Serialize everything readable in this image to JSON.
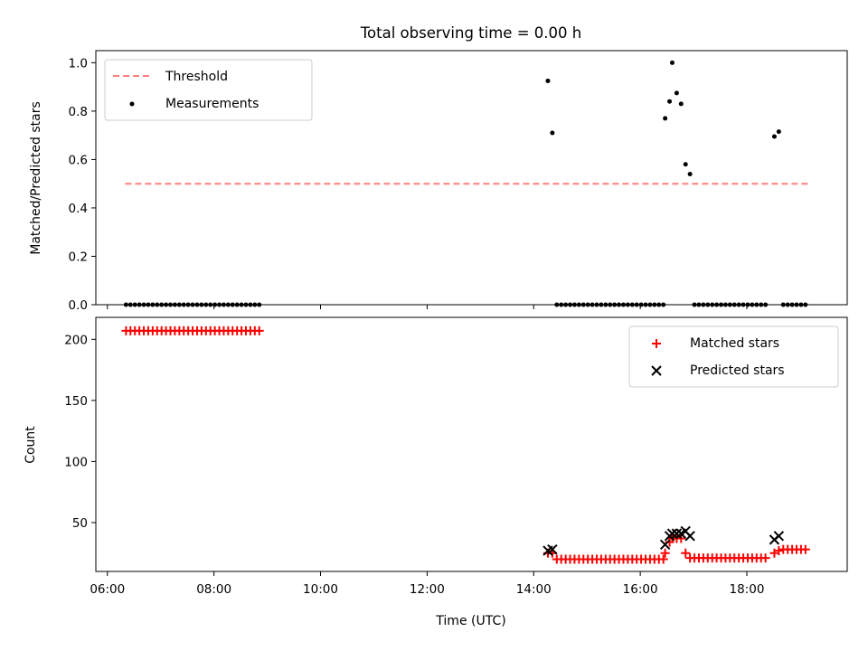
{
  "chart_data": [
    {
      "type": "scatter",
      "title": "Total observing time = 0.00 h",
      "ylabel": "Matched/Predicted stars",
      "xlabel": "",
      "xlim": [
        "05:47",
        "19:53"
      ],
      "ylim": [
        0,
        1.05
      ],
      "yticks": [
        0.0,
        0.2,
        0.4,
        0.6,
        0.8,
        1.0
      ],
      "ytick_labels": [
        "0.0",
        "0.2",
        "0.4",
        "0.6",
        "0.8",
        "1.0"
      ],
      "xticks": [
        "06:00",
        "08:00",
        "10:00",
        "12:00",
        "14:00",
        "16:00",
        "18:00"
      ],
      "xtick_labels_shown": false,
      "grid": false,
      "legend": {
        "placement": "upper-left",
        "entries": [
          {
            "label": "Threshold",
            "kind": "dashed-line",
            "color": "#ff7f7f"
          },
          {
            "label": "Measurements",
            "kind": "dot",
            "color": "#000000"
          }
        ]
      },
      "series": [
        {
          "name": "Threshold",
          "kind": "line",
          "color": "#ff7f7f",
          "dash": true,
          "x": [
            "06:20",
            "19:10"
          ],
          "y": [
            0.5,
            0.5
          ]
        },
        {
          "name": "Measurements",
          "kind": "scatter",
          "color": "#000000",
          "points": [
            [
              "06:21",
              0.0
            ],
            [
              "06:26",
              0.0
            ],
            [
              "06:31",
              0.0
            ],
            [
              "06:36",
              0.0
            ],
            [
              "06:41",
              0.0
            ],
            [
              "06:46",
              0.0
            ],
            [
              "06:51",
              0.0
            ],
            [
              "06:56",
              0.0
            ],
            [
              "07:01",
              0.0
            ],
            [
              "07:06",
              0.0
            ],
            [
              "07:11",
              0.0
            ],
            [
              "07:16",
              0.0
            ],
            [
              "07:21",
              0.0
            ],
            [
              "07:26",
              0.0
            ],
            [
              "07:31",
              0.0
            ],
            [
              "07:36",
              0.0
            ],
            [
              "07:41",
              0.0
            ],
            [
              "07:46",
              0.0
            ],
            [
              "07:51",
              0.0
            ],
            [
              "07:56",
              0.0
            ],
            [
              "08:01",
              0.0
            ],
            [
              "08:06",
              0.0
            ],
            [
              "08:11",
              0.0
            ],
            [
              "08:16",
              0.0
            ],
            [
              "08:21",
              0.0
            ],
            [
              "08:26",
              0.0
            ],
            [
              "08:31",
              0.0
            ],
            [
              "08:36",
              0.0
            ],
            [
              "08:41",
              0.0
            ],
            [
              "08:46",
              0.0
            ],
            [
              "08:51",
              0.0
            ],
            [
              "14:16",
              0.925
            ],
            [
              "14:21",
              0.71
            ],
            [
              "14:26",
              0.0
            ],
            [
              "14:31",
              0.0
            ],
            [
              "14:36",
              0.0
            ],
            [
              "14:41",
              0.0
            ],
            [
              "14:46",
              0.0
            ],
            [
              "14:51",
              0.0
            ],
            [
              "14:56",
              0.0
            ],
            [
              "15:01",
              0.0
            ],
            [
              "15:06",
              0.0
            ],
            [
              "15:11",
              0.0
            ],
            [
              "15:16",
              0.0
            ],
            [
              "15:21",
              0.0
            ],
            [
              "15:26",
              0.0
            ],
            [
              "15:31",
              0.0
            ],
            [
              "15:36",
              0.0
            ],
            [
              "15:41",
              0.0
            ],
            [
              "15:46",
              0.0
            ],
            [
              "15:51",
              0.0
            ],
            [
              "15:56",
              0.0
            ],
            [
              "16:01",
              0.0
            ],
            [
              "16:06",
              0.0
            ],
            [
              "16:11",
              0.0
            ],
            [
              "16:16",
              0.0
            ],
            [
              "16:21",
              0.0
            ],
            [
              "16:26",
              0.0
            ],
            [
              "16:28",
              0.77
            ],
            [
              "16:33",
              0.84
            ],
            [
              "16:36",
              1.0
            ],
            [
              "16:41",
              0.875
            ],
            [
              "16:46",
              0.83
            ],
            [
              "16:51",
              0.58
            ],
            [
              "16:56",
              0.54
            ],
            [
              "17:01",
              0.0
            ],
            [
              "17:06",
              0.0
            ],
            [
              "17:11",
              0.0
            ],
            [
              "17:16",
              0.0
            ],
            [
              "17:21",
              0.0
            ],
            [
              "17:26",
              0.0
            ],
            [
              "17:31",
              0.0
            ],
            [
              "17:36",
              0.0
            ],
            [
              "17:41",
              0.0
            ],
            [
              "17:46",
              0.0
            ],
            [
              "17:51",
              0.0
            ],
            [
              "17:56",
              0.0
            ],
            [
              "18:01",
              0.0
            ],
            [
              "18:06",
              0.0
            ],
            [
              "18:11",
              0.0
            ],
            [
              "18:16",
              0.0
            ],
            [
              "18:21",
              0.0
            ],
            [
              "18:31",
              0.695
            ],
            [
              "18:36",
              0.715
            ],
            [
              "18:41",
              0.0
            ],
            [
              "18:46",
              0.0
            ],
            [
              "18:51",
              0.0
            ],
            [
              "18:56",
              0.0
            ],
            [
              "19:01",
              0.0
            ],
            [
              "19:06",
              0.0
            ]
          ]
        }
      ]
    },
    {
      "type": "scatter",
      "title": "",
      "ylabel": "Count",
      "xlabel": "Time (UTC)",
      "xlim": [
        "05:47",
        "19:53"
      ],
      "ylim": [
        10,
        218
      ],
      "yticks": [
        50,
        100,
        150,
        200
      ],
      "ytick_labels": [
        "50",
        "100",
        "150",
        "200"
      ],
      "xticks": [
        "06:00",
        "08:00",
        "10:00",
        "12:00",
        "14:00",
        "16:00",
        "18:00"
      ],
      "xtick_labels": [
        "06:00",
        "08:00",
        "10:00",
        "12:00",
        "14:00",
        "16:00",
        "18:00"
      ],
      "grid": false,
      "legend": {
        "placement": "upper-right",
        "entries": [
          {
            "label": "Matched stars",
            "kind": "plus",
            "color": "#ff0000"
          },
          {
            "label": "Predicted stars",
            "kind": "x",
            "color": "#000000"
          }
        ]
      },
      "series": [
        {
          "name": "Matched stars",
          "kind": "plus",
          "color": "#ff0000",
          "points": [
            [
              "06:21",
              207
            ],
            [
              "06:26",
              207
            ],
            [
              "06:31",
              207
            ],
            [
              "06:36",
              207
            ],
            [
              "06:41",
              207
            ],
            [
              "06:46",
              207
            ],
            [
              "06:51",
              207
            ],
            [
              "06:56",
              207
            ],
            [
              "07:01",
              207
            ],
            [
              "07:06",
              207
            ],
            [
              "07:11",
              207
            ],
            [
              "07:16",
              207
            ],
            [
              "07:21",
              207
            ],
            [
              "07:26",
              207
            ],
            [
              "07:31",
              207
            ],
            [
              "07:36",
              207
            ],
            [
              "07:41",
              207
            ],
            [
              "07:46",
              207
            ],
            [
              "07:51",
              207
            ],
            [
              "07:56",
              207
            ],
            [
              "08:01",
              207
            ],
            [
              "08:06",
              207
            ],
            [
              "08:11",
              207
            ],
            [
              "08:16",
              207
            ],
            [
              "08:21",
              207
            ],
            [
              "08:26",
              207
            ],
            [
              "08:31",
              207
            ],
            [
              "08:36",
              207
            ],
            [
              "08:41",
              207
            ],
            [
              "08:46",
              207
            ],
            [
              "08:51",
              207
            ],
            [
              "14:16",
              25
            ],
            [
              "14:21",
              25
            ],
            [
              "14:26",
              20
            ],
            [
              "14:31",
              20
            ],
            [
              "14:36",
              20
            ],
            [
              "14:41",
              20
            ],
            [
              "14:46",
              20
            ],
            [
              "14:51",
              20
            ],
            [
              "14:56",
              20
            ],
            [
              "15:01",
              20
            ],
            [
              "15:06",
              20
            ],
            [
              "15:11",
              20
            ],
            [
              "15:16",
              20
            ],
            [
              "15:21",
              20
            ],
            [
              "15:26",
              20
            ],
            [
              "15:31",
              20
            ],
            [
              "15:36",
              20
            ],
            [
              "15:41",
              20
            ],
            [
              "15:46",
              20
            ],
            [
              "15:51",
              20
            ],
            [
              "15:56",
              20
            ],
            [
              "16:01",
              20
            ],
            [
              "16:06",
              20
            ],
            [
              "16:11",
              20
            ],
            [
              "16:16",
              20
            ],
            [
              "16:21",
              20
            ],
            [
              "16:26",
              20
            ],
            [
              "16:28",
              25
            ],
            [
              "16:33",
              34
            ],
            [
              "16:36",
              37
            ],
            [
              "16:41",
              37
            ],
            [
              "16:46",
              37
            ],
            [
              "16:51",
              25
            ],
            [
              "16:56",
              21
            ],
            [
              "17:01",
              21
            ],
            [
              "17:06",
              21
            ],
            [
              "17:11",
              21
            ],
            [
              "17:16",
              21
            ],
            [
              "17:21",
              21
            ],
            [
              "17:26",
              21
            ],
            [
              "17:31",
              21
            ],
            [
              "17:36",
              21
            ],
            [
              "17:41",
              21
            ],
            [
              "17:46",
              21
            ],
            [
              "17:51",
              21
            ],
            [
              "17:56",
              21
            ],
            [
              "18:01",
              21
            ],
            [
              "18:06",
              21
            ],
            [
              "18:11",
              21
            ],
            [
              "18:16",
              21
            ],
            [
              "18:21",
              21
            ],
            [
              "18:31",
              25
            ],
            [
              "18:36",
              27
            ],
            [
              "18:41",
              28
            ],
            [
              "18:46",
              28
            ],
            [
              "18:51",
              28
            ],
            [
              "18:56",
              28
            ],
            [
              "19:01",
              28
            ],
            [
              "19:06",
              28
            ]
          ]
        },
        {
          "name": "Predicted stars",
          "kind": "x",
          "color": "#000000",
          "points": [
            [
              "14:16",
              27
            ],
            [
              "14:21",
              28
            ],
            [
              "16:28",
              32
            ],
            [
              "16:33",
              39
            ],
            [
              "16:36",
              41
            ],
            [
              "16:41",
              41
            ],
            [
              "16:46",
              41
            ],
            [
              "16:51",
              43
            ],
            [
              "16:56",
              39
            ],
            [
              "18:31",
              36
            ],
            [
              "18:36",
              39
            ]
          ]
        }
      ]
    }
  ]
}
